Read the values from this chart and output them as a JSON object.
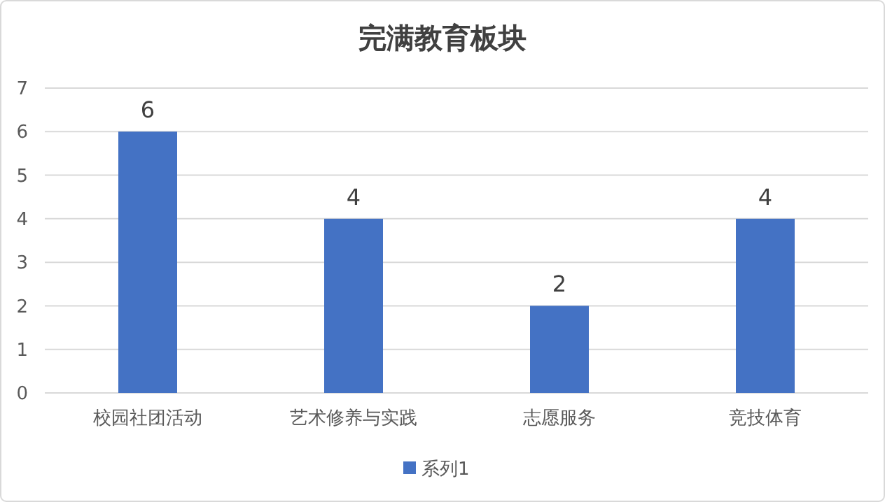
{
  "chart_data": {
    "type": "bar",
    "title": "完满教育板块",
    "categories": [
      "校园社团活动",
      "艺术修养与实践",
      "志愿服务",
      "竞技体育"
    ],
    "series": [
      {
        "name": "系列1",
        "color": "#4472c4",
        "values": [
          6,
          4,
          2,
          4
        ]
      }
    ],
    "ylim": [
      0,
      7
    ],
    "yticks": [
      0,
      1,
      2,
      3,
      4,
      5,
      6,
      7
    ],
    "grid": "y",
    "legend": "bottom",
    "data_labels": true
  }
}
